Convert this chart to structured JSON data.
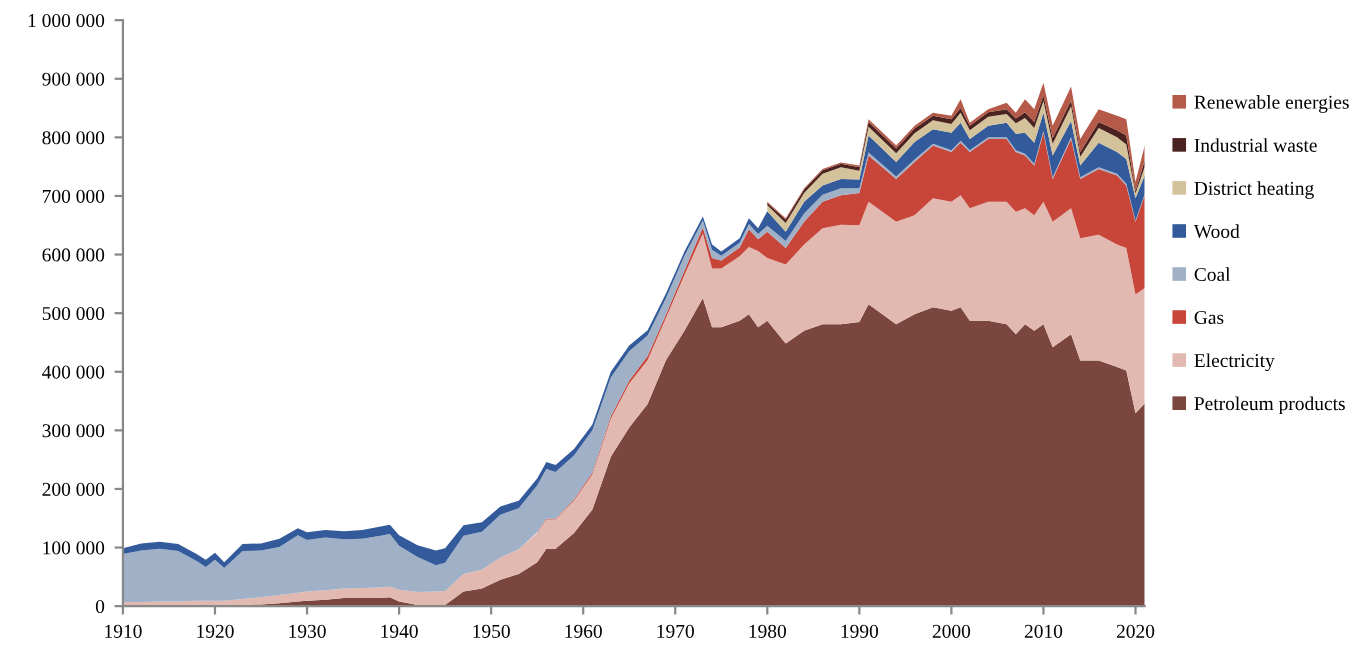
{
  "chart_data": {
    "type": "area",
    "stacked": true,
    "legend": "right",
    "grid": false,
    "x": [
      1910,
      1912,
      1914,
      1916,
      1918,
      1919,
      1920,
      1921,
      1923,
      1925,
      1927,
      1929,
      1930,
      1932,
      1934,
      1936,
      1938,
      1939,
      1940,
      1942,
      1944,
      1945,
      1947,
      1949,
      1951,
      1953,
      1955,
      1956,
      1957,
      1959,
      1961,
      1963,
      1965,
      1967,
      1969,
      1971,
      1973,
      1974,
      1975,
      1977,
      1978,
      1979,
      1980,
      1982,
      1984,
      1986,
      1988,
      1990,
      1991,
      1994,
      1996,
      1998,
      2000,
      2001,
      2002,
      2004,
      2006,
      2007,
      2008,
      2009,
      2010,
      2011,
      2013,
      2014,
      2016,
      2018,
      2019,
      2020,
      2021
    ],
    "xlim": [
      1910,
      2021
    ],
    "xticks": [
      1910,
      1920,
      1930,
      1940,
      1950,
      1960,
      1970,
      1980,
      1990,
      2000,
      2010,
      2020
    ],
    "ylim": [
      0,
      1000000
    ],
    "yticks": [
      0,
      {
        "value": 100000,
        "label": "100 000"
      },
      {
        "value": 200000,
        "label": "200 000"
      },
      {
        "value": 300000,
        "label": "300 000"
      },
      {
        "value": 400000,
        "label": "400 000"
      },
      {
        "value": 500000,
        "label": "500 000"
      },
      {
        "value": 600000,
        "label": "600 000"
      },
      {
        "value": 700000,
        "label": "700 000"
      },
      {
        "value": 800000,
        "label": "800 000"
      },
      {
        "value": 900000,
        "label": "900 000"
      },
      {
        "value": 1000000,
        "label": "1 000 000"
      }
    ],
    "series": [
      {
        "name": "Petroleum products",
        "color": "#7b463e",
        "values": [
          1000,
          1000,
          1000,
          1000,
          1000,
          1000,
          1000,
          1000,
          2000,
          3000,
          5000,
          8000,
          9000,
          11000,
          14000,
          14000,
          14000,
          15000,
          8000,
          2000,
          1000,
          2000,
          25000,
          30000,
          45000,
          55000,
          75000,
          98000,
          98000,
          125000,
          165000,
          255000,
          305000,
          345000,
          420000,
          470000,
          526000,
          476000,
          476000,
          487000,
          498000,
          476000,
          487000,
          448000,
          470000,
          481000,
          481000,
          485000,
          515000,
          481000,
          498000,
          510000,
          504000,
          510000,
          487000,
          487000,
          481000,
          464000,
          481000,
          470000,
          481000,
          442000,
          464000,
          419000,
          419000,
          408000,
          402000,
          329000,
          346000
        ]
      },
      {
        "name": "Electricity",
        "color": "#e2b9b1",
        "values": [
          6000,
          6000,
          7000,
          7000,
          8000,
          8000,
          8000,
          8000,
          10000,
          12000,
          14000,
          15000,
          16000,
          16000,
          16000,
          17000,
          18000,
          18000,
          20000,
          22000,
          24000,
          24000,
          30000,
          32000,
          38000,
          42000,
          50000,
          50000,
          50000,
          55000,
          60000,
          65000,
          75000,
          75000,
          72000,
          95000,
          110000,
          100000,
          100000,
          110000,
          115000,
          130000,
          107000,
          135000,
          147000,
          164000,
          170000,
          165000,
          175000,
          175000,
          169000,
          186000,
          186000,
          191000,
          192000,
          203000,
          209000,
          209000,
          198000,
          197000,
          209000,
          214000,
          215000,
          209000,
          215000,
          209000,
          209000,
          203000,
          197000
        ]
      },
      {
        "name": "Gas",
        "color": "#c8453a",
        "values": [
          null,
          null,
          null,
          null,
          null,
          null,
          null,
          null,
          null,
          null,
          null,
          null,
          null,
          null,
          null,
          null,
          null,
          null,
          null,
          null,
          null,
          null,
          null,
          null,
          null,
          null,
          1000,
          1000,
          1000,
          2000,
          3000,
          4000,
          5000,
          7000,
          6000,
          8000,
          10000,
          18000,
          14000,
          15000,
          30000,
          20000,
          45000,
          28000,
          39000,
          45000,
          50000,
          55000,
          79000,
          73000,
          91000,
          90000,
          85000,
          90000,
          96000,
          107000,
          107000,
          102000,
          90000,
          85000,
          118000,
          73000,
          118000,
          101000,
          112000,
          118000,
          107000,
          124000,
          158000
        ]
      },
      {
        "name": "Coal",
        "color": "#9fb0c7",
        "values": [
          82000,
          88000,
          90000,
          86000,
          68000,
          58000,
          70000,
          56000,
          82000,
          80000,
          82000,
          98000,
          88000,
          90000,
          84000,
          84000,
          88000,
          90000,
          75000,
          60000,
          45000,
          48000,
          65000,
          65000,
          73000,
          70000,
          80000,
          85000,
          80000,
          75000,
          72000,
          66000,
          50000,
          35000,
          28000,
          25000,
          12000,
          14000,
          8000,
          8000,
          9000,
          9000,
          10000,
          12000,
          14000,
          12000,
          12000,
          8000,
          5000,
          4000,
          4000,
          3000,
          3000,
          3000,
          3000,
          3000,
          3000,
          3000,
          3000,
          3000,
          3000,
          3000,
          3000,
          3000,
          3000,
          3000,
          3000,
          2000,
          2000
        ]
      },
      {
        "name": "Wood",
        "color": "#335b9b",
        "values": [
          10000,
          12000,
          12000,
          12000,
          12000,
          12000,
          12000,
          10000,
          12000,
          12000,
          14000,
          12000,
          13000,
          13000,
          14000,
          15000,
          16000,
          16000,
          18000,
          20000,
          25000,
          25000,
          18000,
          16000,
          14000,
          13000,
          12000,
          12000,
          12000,
          11000,
          10000,
          10000,
          10000,
          9000,
          8000,
          7000,
          7000,
          9000,
          7000,
          8000,
          10000,
          10000,
          25000,
          16000,
          20000,
          16000,
          16000,
          15000,
          29000,
          25000,
          30000,
          25000,
          30000,
          31000,
          19000,
          20000,
          25000,
          28000,
          36000,
          36000,
          31000,
          37000,
          28000,
          20000,
          42000,
          37000,
          42000,
          38000,
          32000
        ]
      },
      {
        "name": "District heating",
        "color": "#d4c29a",
        "values": [
          null,
          null,
          null,
          null,
          null,
          null,
          null,
          null,
          null,
          null,
          null,
          null,
          null,
          null,
          null,
          null,
          null,
          null,
          null,
          null,
          null,
          null,
          null,
          null,
          null,
          null,
          null,
          null,
          null,
          null,
          null,
          null,
          null,
          null,
          null,
          null,
          null,
          null,
          null,
          null,
          null,
          null,
          10000,
          15000,
          15000,
          20000,
          20000,
          15000,
          15000,
          15000,
          15000,
          15000,
          15000,
          17000,
          15000,
          15000,
          15000,
          18000,
          25000,
          25000,
          20000,
          20000,
          25000,
          15000,
          25000,
          25000,
          25000,
          8000,
          15000
        ]
      },
      {
        "name": "Industrial waste",
        "color": "#4a2320",
        "values": [
          null,
          null,
          null,
          null,
          null,
          null,
          null,
          null,
          null,
          null,
          null,
          null,
          null,
          null,
          null,
          null,
          null,
          null,
          null,
          null,
          null,
          null,
          null,
          null,
          null,
          null,
          null,
          null,
          null,
          null,
          null,
          null,
          null,
          null,
          null,
          null,
          null,
          null,
          null,
          null,
          null,
          null,
          4000,
          6000,
          6000,
          6000,
          6000,
          6000,
          8000,
          8000,
          8000,
          8000,
          8000,
          8000,
          8000,
          8000,
          8000,
          8000,
          10000,
          10000,
          10000,
          10000,
          10000,
          8000,
          10000,
          12000,
          15000,
          5000,
          10000
        ]
      },
      {
        "name": "Renewable energies",
        "color": "#b55a48",
        "values": [
          null,
          null,
          null,
          null,
          null,
          null,
          null,
          null,
          null,
          null,
          null,
          null,
          null,
          null,
          null,
          null,
          null,
          null,
          null,
          null,
          null,
          null,
          null,
          null,
          null,
          null,
          null,
          null,
          null,
          null,
          null,
          null,
          null,
          null,
          null,
          null,
          null,
          null,
          null,
          null,
          null,
          null,
          2000,
          2000,
          2000,
          2000,
          2000,
          3000,
          5000,
          5000,
          5000,
          5000,
          6000,
          15000,
          5000,
          5000,
          11000,
          10000,
          22000,
          22000,
          21000,
          21000,
          24000,
          22000,
          22000,
          25000,
          28000,
          15000,
          26000
        ]
      }
    ]
  }
}
